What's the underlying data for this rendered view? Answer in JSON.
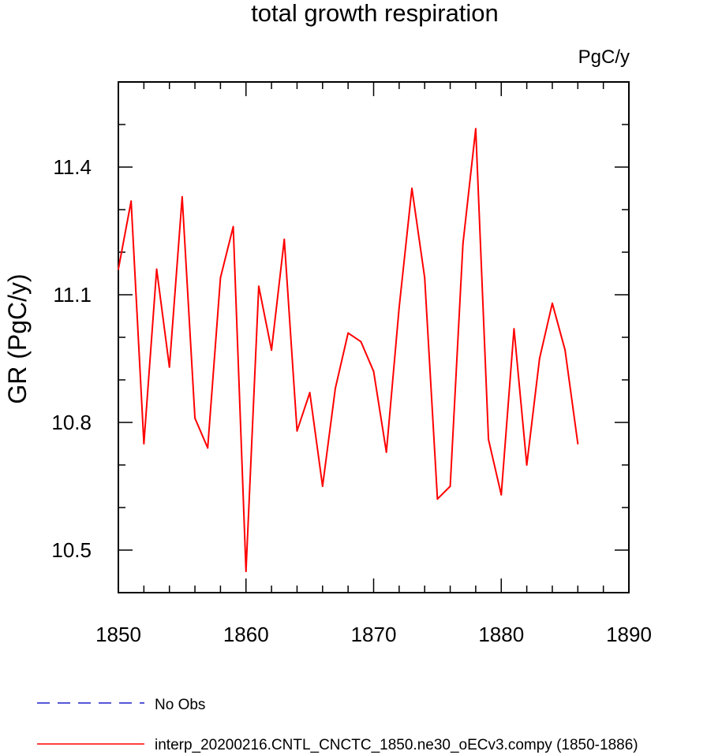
{
  "chart_data": {
    "type": "line",
    "title": "total growth respiration",
    "units": "PgC/y",
    "xlabel": "",
    "ylabel": "GR  (PgC/y)",
    "xlim": [
      1850,
      1890
    ],
    "ylim": [
      10.4,
      11.6
    ],
    "xticks": [
      "1850",
      "1860",
      "1870",
      "1880",
      "1890"
    ],
    "yticks": [
      "10.5",
      "10.8",
      "11.1",
      "11.4"
    ],
    "series": [
      {
        "name": "interp_20200216.CNTL_CNCTC_1850.ne30_oECv3.compy (1850-1886)",
        "color": "#ff0000",
        "style": "solid",
        "x": [
          1850,
          1851,
          1852,
          1853,
          1854,
          1855,
          1856,
          1857,
          1858,
          1859,
          1860,
          1861,
          1862,
          1863,
          1864,
          1865,
          1866,
          1867,
          1868,
          1869,
          1870,
          1871,
          1872,
          1873,
          1874,
          1875,
          1876,
          1877,
          1878,
          1879,
          1880,
          1881,
          1882,
          1883,
          1884,
          1885,
          1886
        ],
        "y": [
          11.16,
          11.32,
          10.75,
          11.16,
          10.93,
          11.33,
          10.81,
          10.74,
          11.14,
          11.26,
          10.45,
          11.12,
          10.97,
          11.23,
          10.78,
          10.87,
          10.65,
          10.88,
          11.01,
          10.99,
          10.92,
          10.73,
          11.07,
          11.35,
          11.14,
          10.62,
          10.65,
          11.22,
          11.49,
          10.76,
          10.63,
          11.02,
          10.7,
          10.95,
          11.08,
          10.97,
          10.75
        ]
      },
      {
        "name": "No Obs",
        "color": "#1f1fcc",
        "style": "dashed",
        "x": [],
        "y": []
      }
    ],
    "legend_placement": "bottom-left"
  }
}
